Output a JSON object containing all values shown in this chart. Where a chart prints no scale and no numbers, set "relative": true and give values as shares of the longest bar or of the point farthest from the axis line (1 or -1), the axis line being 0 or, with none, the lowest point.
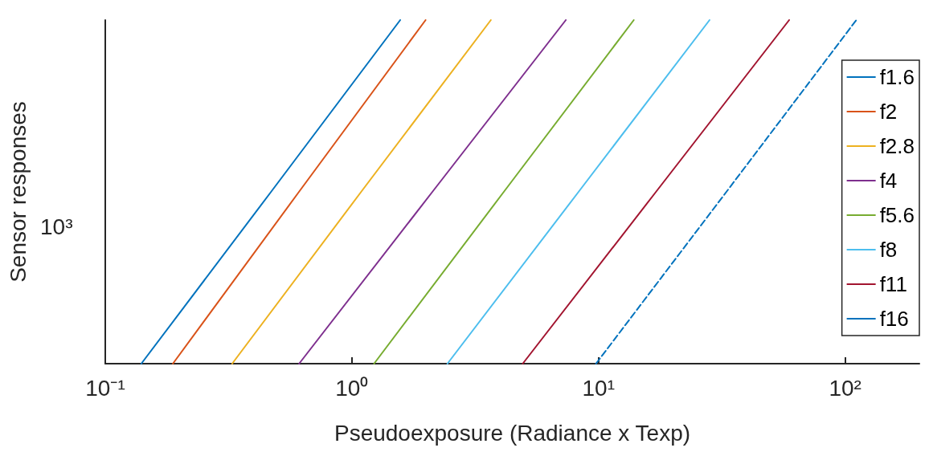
{
  "chart_data": {
    "type": "line",
    "xlabel": "Pseudoexposure (Radiance x Texp)",
    "ylabel": "Sensor responses",
    "relative": true,
    "log": "x",
    "xlim": [
      0.1,
      200
    ],
    "xticks": [
      {
        "value": 0.1,
        "label": "10⁻¹"
      },
      {
        "value": 1,
        "label": "10⁰"
      },
      {
        "value": 10,
        "label": "10¹"
      },
      {
        "value": 100,
        "label": "10²"
      }
    ],
    "annotations": [
      "10³"
    ],
    "legend": "right",
    "grid": false,
    "marker": "none",
    "series": [
      {
        "name": "f1.6",
        "color": "#0072bd",
        "x": [
          0.14,
          0.47,
          1.57
        ],
        "values": [
          0,
          0.5,
          1
        ]
      },
      {
        "name": "f2",
        "color": "#d95319",
        "x": [
          0.188,
          0.61,
          1.99
        ],
        "values": [
          0,
          0.5,
          1
        ]
      },
      {
        "name": "f2.8",
        "color": "#edb120",
        "x": [
          0.327,
          1.09,
          3.66
        ],
        "values": [
          0,
          0.5,
          1
        ]
      },
      {
        "name": "f4",
        "color": "#7e2f8e",
        "x": [
          0.611,
          2.12,
          7.37
        ],
        "values": [
          0,
          0.5,
          1
        ]
      },
      {
        "name": "f5.6",
        "color": "#77ac30",
        "x": [
          1.23,
          4.13,
          13.9
        ],
        "values": [
          0,
          0.5,
          1
        ]
      },
      {
        "name": "f8",
        "color": "#4dbeee",
        "x": [
          2.44,
          8.3,
          28.2
        ],
        "values": [
          0,
          0.5,
          1
        ]
      },
      {
        "name": "f11",
        "color": "#a2142f",
        "x": [
          4.93,
          17.1,
          59.3
        ],
        "values": [
          0,
          0.5,
          1
        ]
      },
      {
        "name": "f16",
        "color": "#0072bd",
        "line_style": "dashed",
        "x": [
          9.77,
          33,
          111
        ],
        "values": [
          0,
          0.5,
          1
        ]
      }
    ]
  }
}
